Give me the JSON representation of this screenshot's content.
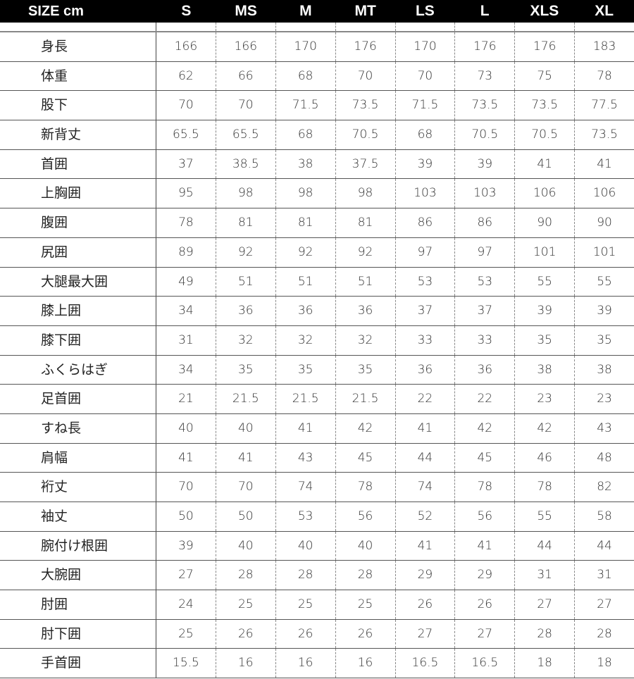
{
  "header": {
    "label": "SIZE cm",
    "sizes": [
      "S",
      "MS",
      "M",
      "MT",
      "LS",
      "L",
      "XLS",
      "XL"
    ]
  },
  "rows": [
    {
      "label": "身長",
      "values": [
        "166",
        "166",
        "170",
        "176",
        "170",
        "176",
        "176",
        "183"
      ]
    },
    {
      "label": "体重",
      "values": [
        "62",
        "66",
        "68",
        "70",
        "70",
        "73",
        "75",
        "78"
      ]
    },
    {
      "label": "股下",
      "values": [
        "70",
        "70",
        "71.5",
        "73.5",
        "71.5",
        "73.5",
        "73.5",
        "77.5"
      ]
    },
    {
      "label": "新背丈",
      "values": [
        "65.5",
        "65.5",
        "68",
        "70.5",
        "68",
        "70.5",
        "70.5",
        "73.5"
      ]
    },
    {
      "label": "首囲",
      "values": [
        "37",
        "38.5",
        "38",
        "37.5",
        "39",
        "39",
        "41",
        "41"
      ]
    },
    {
      "label": "上胸囲",
      "values": [
        "95",
        "98",
        "98",
        "98",
        "103",
        "103",
        "106",
        "106"
      ]
    },
    {
      "label": "腹囲",
      "values": [
        "78",
        "81",
        "81",
        "81",
        "86",
        "86",
        "90",
        "90"
      ]
    },
    {
      "label": "尻囲",
      "values": [
        "89",
        "92",
        "92",
        "92",
        "97",
        "97",
        "101",
        "101"
      ]
    },
    {
      "label": "大腿最大囲",
      "values": [
        "49",
        "51",
        "51",
        "51",
        "53",
        "53",
        "55",
        "55"
      ]
    },
    {
      "label": "膝上囲",
      "values": [
        "34",
        "36",
        "36",
        "36",
        "37",
        "37",
        "39",
        "39"
      ]
    },
    {
      "label": "膝下囲",
      "values": [
        "31",
        "32",
        "32",
        "32",
        "33",
        "33",
        "35",
        "35"
      ]
    },
    {
      "label": "ふくらはぎ",
      "values": [
        "34",
        "35",
        "35",
        "35",
        "36",
        "36",
        "38",
        "38"
      ]
    },
    {
      "label": "足首囲",
      "values": [
        "21",
        "21.5",
        "21.5",
        "21.5",
        "22",
        "22",
        "23",
        "23"
      ]
    },
    {
      "label": "すね長",
      "values": [
        "40",
        "40",
        "41",
        "42",
        "41",
        "42",
        "42",
        "43"
      ]
    },
    {
      "label": "肩幅",
      "values": [
        "41",
        "41",
        "43",
        "45",
        "44",
        "45",
        "46",
        "48"
      ]
    },
    {
      "label": "裄丈",
      "values": [
        "70",
        "70",
        "74",
        "78",
        "74",
        "78",
        "78",
        "82"
      ]
    },
    {
      "label": "袖丈",
      "values": [
        "50",
        "50",
        "53",
        "56",
        "52",
        "56",
        "55",
        "58"
      ]
    },
    {
      "label": "腕付け根囲",
      "values": [
        "39",
        "40",
        "40",
        "40",
        "41",
        "41",
        "44",
        "44"
      ]
    },
    {
      "label": "大腕囲",
      "values": [
        "27",
        "28",
        "28",
        "28",
        "29",
        "29",
        "31",
        "31"
      ]
    },
    {
      "label": "肘囲",
      "values": [
        "24",
        "25",
        "25",
        "25",
        "26",
        "26",
        "27",
        "27"
      ]
    },
    {
      "label": "肘下囲",
      "values": [
        "25",
        "26",
        "26",
        "26",
        "27",
        "27",
        "28",
        "28"
      ]
    },
    {
      "label": "手首囲",
      "values": [
        "15.5",
        "16",
        "16",
        "16",
        "16.5",
        "16.5",
        "18",
        "18"
      ]
    }
  ]
}
